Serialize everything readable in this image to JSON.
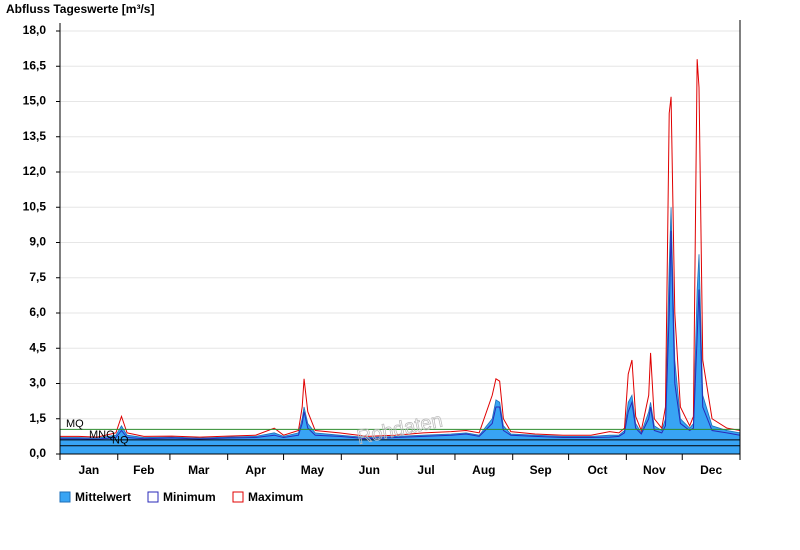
{
  "chart_data": {
    "type": "hydrograph",
    "title": "Abfluss Tageswerte [m³/s]",
    "watermark": "Rohdaten",
    "x": [
      0,
      10,
      20,
      30,
      33,
      36,
      45,
      60,
      75,
      90,
      105,
      115,
      120,
      128,
      130,
      131,
      133,
      137,
      150,
      165,
      180,
      195,
      210,
      218,
      225,
      232,
      234,
      236,
      238,
      242,
      255,
      270,
      285,
      295,
      300,
      303,
      305,
      307,
      309,
      312,
      316,
      317,
      319,
      323,
      325,
      327,
      328,
      330,
      333,
      338,
      340,
      342,
      343,
      345,
      350,
      358,
      365
    ],
    "xlim": [
      0,
      365
    ],
    "xticks": [
      0,
      31,
      59,
      90,
      120,
      151,
      181,
      212,
      243,
      273,
      304,
      334,
      365
    ],
    "month_labels": [
      "Jan",
      "Feb",
      "Mar",
      "Apr",
      "May",
      "Jun",
      "Jul",
      "Aug",
      "Sep",
      "Oct",
      "Nov",
      "Dec"
    ],
    "ylim": [
      0,
      18
    ],
    "yticks": [
      {
        "value": 0,
        "label": "0,0"
      },
      {
        "value": 1.5,
        "label": "1,5"
      },
      {
        "value": 3,
        "label": "3,0"
      },
      {
        "value": 4.5,
        "label": "4,5"
      },
      {
        "value": 6,
        "label": "6,0"
      },
      {
        "value": 7.5,
        "label": "7,5"
      },
      {
        "value": 9,
        "label": "9,0"
      },
      {
        "value": 10.5,
        "label": "10,5"
      },
      {
        "value": 12,
        "label": "12,0"
      },
      {
        "value": 13.5,
        "label": "13,5"
      },
      {
        "value": 15,
        "label": "15,0"
      },
      {
        "value": 16.5,
        "label": "16,5"
      },
      {
        "value": 18,
        "label": "18,0"
      }
    ],
    "grid": true,
    "series": [
      {
        "name": "Mittelwert",
        "color": "#38a4f4",
        "fill": true,
        "values": [
          0.7,
          0.7,
          0.68,
          0.8,
          1.2,
          0.8,
          0.7,
          0.72,
          0.68,
          0.72,
          0.75,
          0.9,
          0.75,
          0.9,
          1.5,
          2.0,
          1.3,
          0.9,
          0.8,
          0.7,
          0.75,
          0.8,
          0.85,
          0.9,
          0.8,
          1.5,
          2.3,
          2.2,
          1.2,
          0.85,
          0.8,
          0.75,
          0.75,
          0.8,
          0.8,
          1.0,
          2.2,
          2.5,
          1.3,
          0.9,
          1.8,
          2.2,
          1.2,
          1.0,
          1.5,
          8.0,
          10.5,
          4.0,
          1.5,
          1.1,
          1.3,
          7.0,
          8.5,
          2.5,
          1.2,
          1.0,
          0.9
        ]
      },
      {
        "name": "Maximum",
        "color": "#e00000",
        "fill": false,
        "values": [
          0.75,
          0.75,
          0.72,
          0.9,
          1.6,
          0.9,
          0.75,
          0.76,
          0.72,
          0.76,
          0.8,
          1.1,
          0.8,
          1.0,
          2.0,
          3.2,
          1.8,
          1.0,
          0.9,
          0.75,
          0.8,
          0.9,
          0.95,
          1.0,
          0.9,
          2.5,
          3.2,
          3.1,
          1.5,
          0.95,
          0.85,
          0.8,
          0.8,
          0.95,
          0.9,
          1.1,
          3.4,
          4.0,
          1.6,
          1.0,
          2.5,
          4.3,
          1.5,
          1.1,
          2.0,
          14.5,
          15.2,
          6.0,
          2.0,
          1.2,
          1.6,
          16.8,
          15.6,
          4.0,
          1.5,
          1.1,
          1.0
        ]
      },
      {
        "name": "Minimum",
        "color": "#2a2ab8",
        "fill": false,
        "values": [
          0.65,
          0.65,
          0.63,
          0.7,
          1.0,
          0.7,
          0.65,
          0.68,
          0.64,
          0.68,
          0.7,
          0.8,
          0.7,
          0.8,
          1.3,
          1.8,
          1.1,
          0.8,
          0.75,
          0.65,
          0.7,
          0.75,
          0.8,
          0.85,
          0.75,
          1.3,
          2.0,
          2.0,
          1.0,
          0.8,
          0.75,
          0.7,
          0.7,
          0.72,
          0.75,
          0.9,
          1.8,
          2.2,
          1.1,
          0.85,
          1.5,
          2.0,
          1.0,
          0.9,
          1.2,
          6.0,
          9.5,
          3.0,
          1.3,
          1.0,
          1.1,
          5.0,
          7.0,
          2.0,
          1.0,
          0.9,
          0.8
        ]
      }
    ],
    "reference_lines": [
      {
        "label": "MQ",
        "value": 1.05,
        "color": "#2e8b2e"
      },
      {
        "label": "MNQ",
        "value": 0.6,
        "color": "#000000"
      },
      {
        "label": "NQ",
        "value": 0.35,
        "color": "#000000"
      }
    ]
  }
}
